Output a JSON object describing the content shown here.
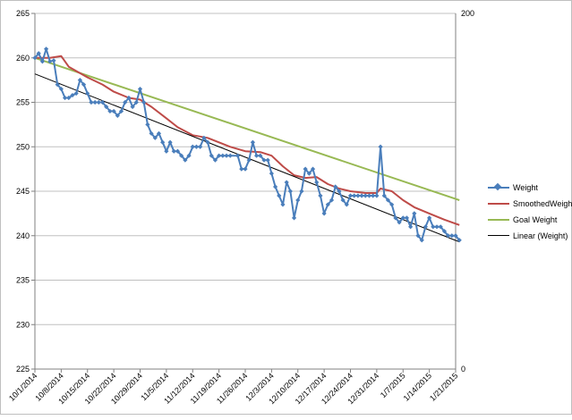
{
  "chart_data": {
    "type": "line",
    "title": "",
    "xlabel": "",
    "ylabel": "",
    "ylim": [
      225,
      265
    ],
    "y_ticks": [
      "225",
      "230",
      "235",
      "240",
      "245",
      "250",
      "255",
      "260",
      "265"
    ],
    "y2lim": [
      0,
      200
    ],
    "y2_ticks": [
      "0",
      "200"
    ],
    "x_tick_labels": [
      "10/1/2014",
      "10/8/2014",
      "10/15/2014",
      "10/22/2014",
      "10/29/2014",
      "11/5/2014",
      "11/12/2014",
      "11/19/2014",
      "11/26/2014",
      "12/3/2014",
      "12/10/2014",
      "12/17/2014",
      "12/24/2014",
      "12/31/2014",
      "1/7/2015",
      "1/14/2015",
      "1/21/2015"
    ],
    "x_dates": [
      "2014-10-01",
      "2014-10-08",
      "2014-10-15",
      "2014-10-22",
      "2014-10-29",
      "2014-11-05",
      "2014-11-12",
      "2014-11-19",
      "2014-11-26",
      "2014-12-03",
      "2014-12-10",
      "2014-12-17",
      "2014-12-24",
      "2014-12-31",
      "2015-01-07",
      "2015-01-14",
      "2015-01-21"
    ],
    "grid": "horizontal",
    "legend_position": "right",
    "series": [
      {
        "name": "Weight",
        "color": "#4a7ebb",
        "marker": "diamond",
        "points": [
          [
            "2014-10-01",
            260.0
          ],
          [
            "2014-10-02",
            260.5
          ],
          [
            "2014-10-03",
            259.6
          ],
          [
            "2014-10-04",
            261.0
          ],
          [
            "2014-10-05",
            259.6
          ],
          [
            "2014-10-06",
            259.7
          ],
          [
            "2014-10-07",
            257.0
          ],
          [
            "2014-10-08",
            256.5
          ],
          [
            "2014-10-09",
            255.5
          ],
          [
            "2014-10-10",
            255.5
          ],
          [
            "2014-10-11",
            255.8
          ],
          [
            "2014-10-12",
            256.0
          ],
          [
            "2014-10-13",
            257.5
          ],
          [
            "2014-10-14",
            257.0
          ],
          [
            "2014-10-15",
            256.0
          ],
          [
            "2014-10-16",
            255.0
          ],
          [
            "2014-10-17",
            255.0
          ],
          [
            "2014-10-18",
            255.0
          ],
          [
            "2014-10-19",
            255.0
          ],
          [
            "2014-10-20",
            254.5
          ],
          [
            "2014-10-21",
            254.0
          ],
          [
            "2014-10-22",
            254.0
          ],
          [
            "2014-10-23",
            253.5
          ],
          [
            "2014-10-24",
            254.0
          ],
          [
            "2014-10-25",
            255.0
          ],
          [
            "2014-10-26",
            255.5
          ],
          [
            "2014-10-27",
            254.5
          ],
          [
            "2014-10-28",
            255.0
          ],
          [
            "2014-10-29",
            256.5
          ],
          [
            "2014-10-30",
            255.0
          ],
          [
            "2014-10-31",
            252.5
          ],
          [
            "2014-11-01",
            251.5
          ],
          [
            "2014-11-02",
            251.0
          ],
          [
            "2014-11-03",
            251.5
          ],
          [
            "2014-11-04",
            250.5
          ],
          [
            "2014-11-05",
            249.5
          ],
          [
            "2014-11-06",
            250.5
          ],
          [
            "2014-11-07",
            249.5
          ],
          [
            "2014-11-08",
            249.5
          ],
          [
            "2014-11-09",
            249.0
          ],
          [
            "2014-11-10",
            248.5
          ],
          [
            "2014-11-11",
            249.0
          ],
          [
            "2014-11-12",
            250.0
          ],
          [
            "2014-11-13",
            250.0
          ],
          [
            "2014-11-14",
            250.0
          ],
          [
            "2014-11-15",
            251.0
          ],
          [
            "2014-11-16",
            250.5
          ],
          [
            "2014-11-17",
            249.0
          ],
          [
            "2014-11-18",
            248.5
          ],
          [
            "2014-11-19",
            249.0
          ],
          [
            "2014-11-20",
            249.0
          ],
          [
            "2014-11-21",
            249.0
          ],
          [
            "2014-11-22",
            249.0
          ],
          [
            "2014-11-24",
            249.0
          ],
          [
            "2014-11-25",
            247.5
          ],
          [
            "2014-11-26",
            247.5
          ],
          [
            "2014-11-27",
            248.5
          ],
          [
            "2014-11-28",
            250.5
          ],
          [
            "2014-11-29",
            249.0
          ],
          [
            "2014-11-30",
            249.0
          ],
          [
            "2014-12-01",
            248.5
          ],
          [
            "2014-12-02",
            248.5
          ],
          [
            "2014-12-03",
            247.0
          ],
          [
            "2014-12-04",
            245.5
          ],
          [
            "2014-12-05",
            244.5
          ],
          [
            "2014-12-06",
            243.5
          ],
          [
            "2014-12-07",
            246.0
          ],
          [
            "2014-12-08",
            245.0
          ],
          [
            "2014-12-09",
            242.0
          ],
          [
            "2014-12-10",
            244.0
          ],
          [
            "2014-12-11",
            245.0
          ],
          [
            "2014-12-12",
            247.5
          ],
          [
            "2014-12-13",
            247.0
          ],
          [
            "2014-12-14",
            247.5
          ],
          [
            "2014-12-15",
            246.0
          ],
          [
            "2014-12-16",
            244.5
          ],
          [
            "2014-12-17",
            242.5
          ],
          [
            "2014-12-18",
            243.5
          ],
          [
            "2014-12-19",
            244.0
          ],
          [
            "2014-12-20",
            245.5
          ],
          [
            "2014-12-21",
            245.0
          ],
          [
            "2014-12-22",
            244.0
          ],
          [
            "2014-12-23",
            243.5
          ],
          [
            "2014-12-24",
            244.5
          ],
          [
            "2014-12-25",
            244.5
          ],
          [
            "2014-12-26",
            244.5
          ],
          [
            "2014-12-27",
            244.5
          ],
          [
            "2014-12-28",
            244.5
          ],
          [
            "2014-12-29",
            244.5
          ],
          [
            "2014-12-30",
            244.5
          ],
          [
            "2014-12-31",
            244.5
          ],
          [
            "2015-01-01",
            250.0
          ],
          [
            "2015-01-02",
            244.5
          ],
          [
            "2015-01-03",
            244.0
          ],
          [
            "2015-01-04",
            243.5
          ],
          [
            "2015-01-05",
            242.0
          ],
          [
            "2015-01-06",
            241.5
          ],
          [
            "2015-01-07",
            242.0
          ],
          [
            "2015-01-08",
            242.0
          ],
          [
            "2015-01-09",
            241.0
          ],
          [
            "2015-01-10",
            242.5
          ],
          [
            "2015-01-11",
            240.0
          ],
          [
            "2015-01-12",
            239.5
          ],
          [
            "2015-01-13",
            241.0
          ],
          [
            "2015-01-14",
            242.0
          ],
          [
            "2015-01-15",
            241.0
          ],
          [
            "2015-01-16",
            241.0
          ],
          [
            "2015-01-17",
            241.0
          ],
          [
            "2015-01-18",
            240.5
          ],
          [
            "2015-01-19",
            240.0
          ],
          [
            "2015-01-20",
            240.0
          ],
          [
            "2015-01-21",
            240.0
          ],
          [
            "2015-01-22",
            239.5
          ]
        ]
      },
      {
        "name": "SmoothedWeight",
        "color": "#be4b48",
        "points": [
          [
            "2014-10-01",
            260.0
          ],
          [
            "2014-10-05",
            260.0
          ],
          [
            "2014-10-08",
            260.2
          ],
          [
            "2014-10-10",
            259.0
          ],
          [
            "2014-10-15",
            257.8
          ],
          [
            "2014-10-19",
            257.0
          ],
          [
            "2014-10-22",
            256.2
          ],
          [
            "2014-10-26",
            255.5
          ],
          [
            "2014-10-29",
            255.3
          ],
          [
            "2014-11-01",
            254.5
          ],
          [
            "2014-11-05",
            253.2
          ],
          [
            "2014-11-08",
            252.2
          ],
          [
            "2014-11-12",
            251.3
          ],
          [
            "2014-11-16",
            251.0
          ],
          [
            "2014-11-19",
            250.5
          ],
          [
            "2014-11-22",
            250.0
          ],
          [
            "2014-11-26",
            249.5
          ],
          [
            "2014-11-30",
            249.4
          ],
          [
            "2014-12-03",
            249.0
          ],
          [
            "2014-12-06",
            247.8
          ],
          [
            "2014-12-09",
            246.8
          ],
          [
            "2014-12-12",
            246.5
          ],
          [
            "2014-12-15",
            246.6
          ],
          [
            "2014-12-18",
            245.8
          ],
          [
            "2014-12-21",
            245.3
          ],
          [
            "2014-12-24",
            245.0
          ],
          [
            "2014-12-28",
            244.8
          ],
          [
            "2014-12-31",
            244.8
          ],
          [
            "2015-01-01",
            245.3
          ],
          [
            "2015-01-04",
            245.0
          ],
          [
            "2015-01-07",
            244.0
          ],
          [
            "2015-01-10",
            243.2
          ],
          [
            "2015-01-14",
            242.5
          ],
          [
            "2015-01-18",
            241.8
          ],
          [
            "2015-01-22",
            241.2
          ]
        ]
      },
      {
        "name": "Goal Weight",
        "color": "#98b954",
        "points": [
          [
            "2014-10-01",
            260.0
          ],
          [
            "2015-01-22",
            244.0
          ]
        ]
      },
      {
        "name": "Linear (Weight)",
        "color": "#000000",
        "points": [
          [
            "2014-10-01",
            258.2
          ],
          [
            "2015-01-22",
            239.3
          ]
        ]
      }
    ]
  }
}
